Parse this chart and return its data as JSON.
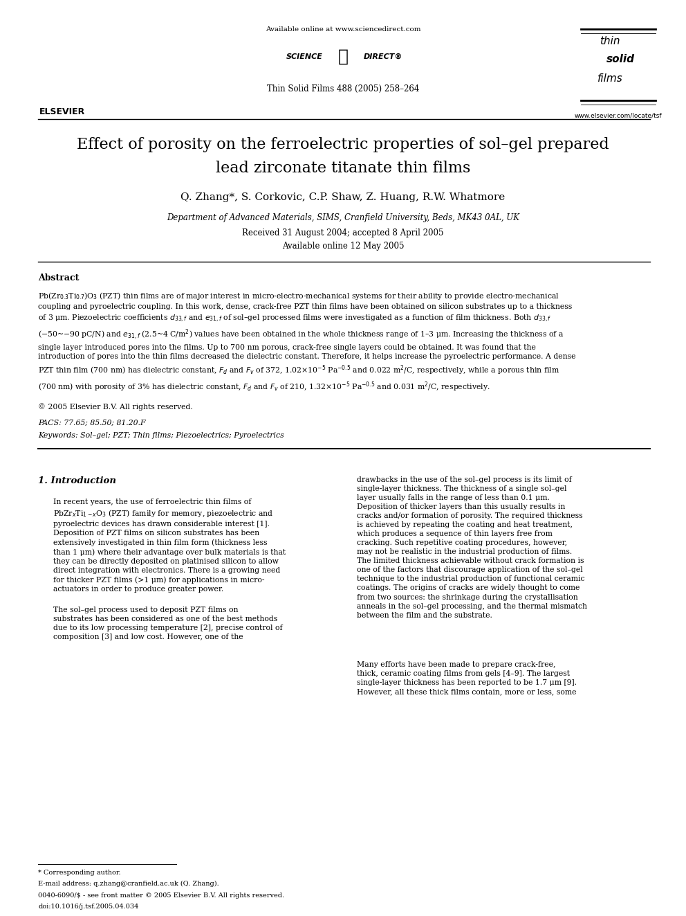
{
  "background_color": "#ffffff",
  "page_width": 9.92,
  "page_height": 13.23,
  "header_available_text": "Available online at www.sciencedirect.com",
  "journal_info": "Thin Solid Films 488 (2005) 258–264",
  "website": "www.elsevier.com/locate/tsf",
  "title_line1": "Effect of porosity on the ferroelectric properties of sol–gel prepared",
  "title_line2": "lead zirconate titanate thin films",
  "authors": "Q. Zhang*, S. Corkovic, C.P. Shaw, Z. Huang, R.W. Whatmore",
  "affiliation": "Department of Advanced Materials, SIMS, Cranfield University, Beds, MK43 0AL, UK",
  "received": "Received 31 August 2004; accepted 8 April 2005",
  "available_online": "Available online 12 May 2005",
  "abstract_title": "Abstract",
  "copyright": "© 2005 Elsevier B.V. All rights reserved.",
  "pacs": "PACS: 77.65; 85.50; 81.20.F",
  "keywords": "Keywords: Sol–gel; PZT; Thin films; Piezoelectrics; Pyroelectrics",
  "section1_title": "1. Introduction",
  "footer_note": "* Corresponding author.",
  "footer_email": "E-mail address: q.zhang@cranfield.ac.uk (Q. Zhang).",
  "footer_issn": "0040-6090/$ - see front matter © 2005 Elsevier B.V. All rights reserved.",
  "footer_doi": "doi:10.1016/j.tsf.2005.04.034"
}
